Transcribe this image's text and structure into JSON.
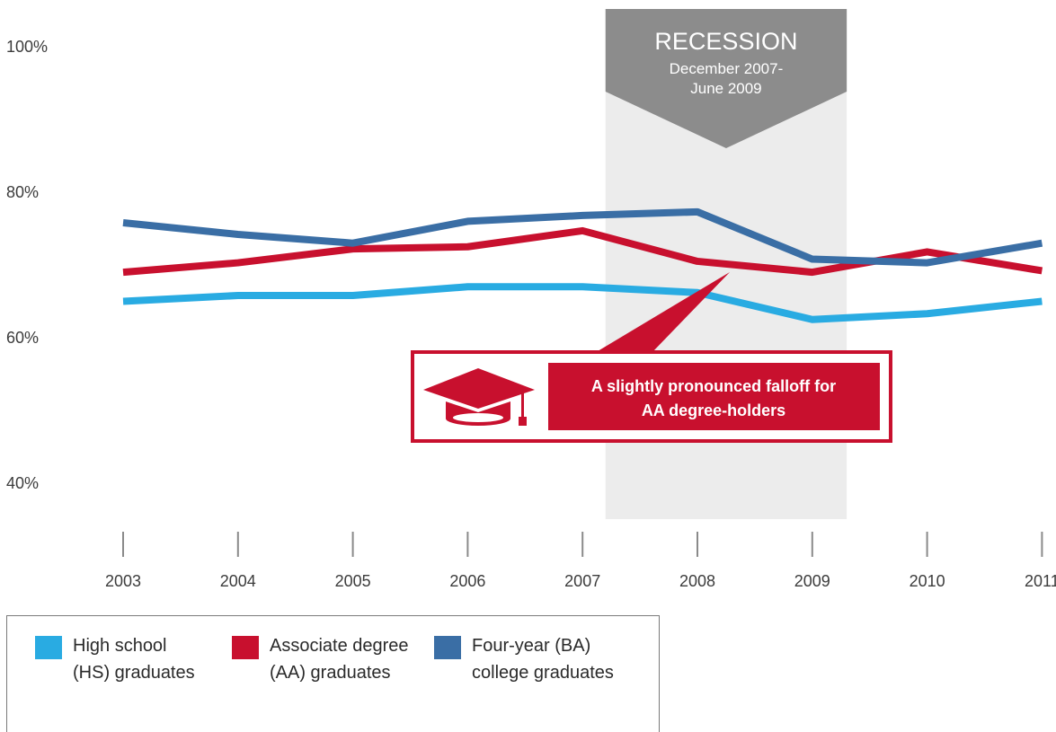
{
  "chart_data": {
    "type": "line",
    "x": [
      "2003",
      "2004",
      "2005",
      "2006",
      "2007",
      "2008",
      "2009",
      "2010",
      "2011"
    ],
    "y_ticks": [
      "100%",
      "80%",
      "60%",
      "40%"
    ],
    "ylim": [
      40,
      100
    ],
    "grid": false,
    "series": [
      {
        "name": "High school (HS) graduates",
        "color": "#29abe2",
        "values": [
          65.0,
          65.8,
          65.8,
          67.0,
          67.0,
          66.2,
          62.5,
          63.3,
          65.0
        ]
      },
      {
        "name": "Associate degree (AA) graduates",
        "color": "#c8102e",
        "values": [
          69.0,
          70.3,
          72.2,
          72.5,
          74.7,
          70.5,
          69.0,
          71.8,
          69.2
        ]
      },
      {
        "name": "Four-year (BA) college graduates",
        "color": "#3a6ea5",
        "values": [
          75.8,
          74.2,
          73.0,
          76.0,
          76.8,
          77.3,
          70.8,
          70.3,
          73.0
        ]
      }
    ],
    "annotations": {
      "recession_title": "RECESSION",
      "recession_line1": "December 2007-",
      "recession_line2": "June 2009",
      "recession_start": 2007.2,
      "recession_end": 2009.3,
      "callout_line1": "A slightly pronounced falloff for",
      "callout_line2": "AA degree-holders"
    }
  },
  "legend": {
    "items": [
      {
        "label": "High school\n(HS) graduates",
        "color": "#29abe2"
      },
      {
        "label": "Associate degree\n(AA) graduates",
        "color": "#c8102e"
      },
      {
        "label": "Four-year (BA)\ncollege graduates",
        "color": "#3a6ea5"
      }
    ]
  },
  "icons": {
    "callout_icon": "graduation-cap-icon"
  },
  "colors": {
    "recession_band": "#ececec",
    "recession_banner": "#8c8c8c",
    "callout": "#c8102e"
  }
}
